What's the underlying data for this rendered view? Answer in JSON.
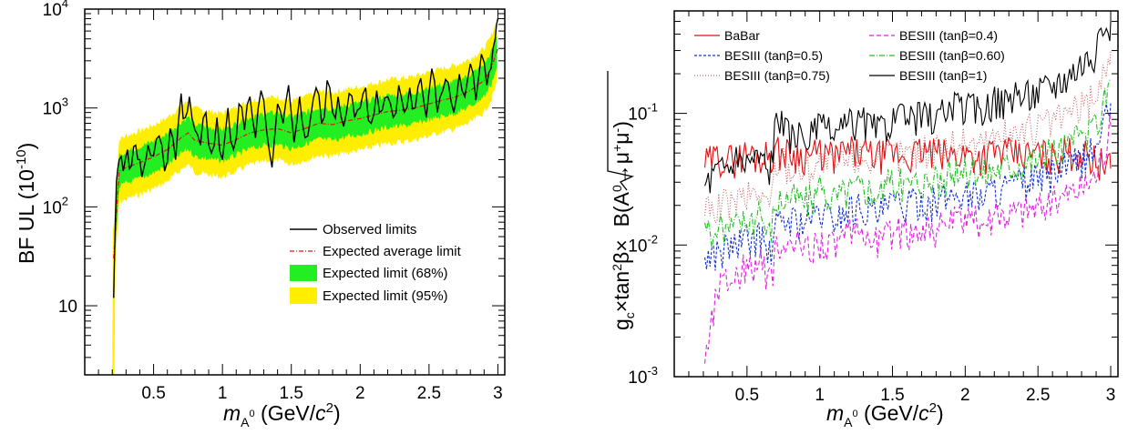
{
  "chart_data": [
    {
      "type": "line",
      "scale": "log-y",
      "xlabel": "m_A0 (GeV/c2)",
      "xlabel_parts": {
        "m": "m",
        "sub": "A",
        "sup": "0",
        "unit_open": " (GeV/",
        "c": "c",
        "pow": "2",
        "close": ")"
      },
      "ylabel": "BF UL (10^-10)",
      "ylabel_parts": {
        "main": "BF UL (10",
        "sup": "-10",
        "close": ")"
      },
      "xlim": [
        0.0,
        3.05
      ],
      "ylim": [
        2,
        10000
      ],
      "x_ticks": [
        "0.5",
        "1",
        "1.5",
        "2",
        "2.5",
        "3"
      ],
      "y_ticks": [
        {
          "value": 10,
          "base": "10",
          "exp": ""
        },
        {
          "value": 100,
          "base": "10",
          "exp": "2"
        },
        {
          "value": 1000,
          "base": "10",
          "exp": "3"
        },
        {
          "value": 10000,
          "base": "10",
          "exp": "4"
        }
      ],
      "legend": [
        "Observed limits",
        "Expected average limit",
        "Expected limit (68%)",
        "Expected limit (95%)"
      ],
      "legend_position": "lower-right",
      "colors": {
        "observed": "#000000",
        "expected": "#d42020",
        "band68": "#22ee22",
        "band95": "#ffee00"
      },
      "expected_curve": {
        "x": [
          0.21,
          0.25,
          0.3,
          0.4,
          0.5,
          0.6,
          0.7,
          0.75,
          0.8,
          0.9,
          1.0,
          1.1,
          1.2,
          1.3,
          1.4,
          1.5,
          1.6,
          1.7,
          1.8,
          1.9,
          2.0,
          2.1,
          2.2,
          2.3,
          2.4,
          2.5,
          2.6,
          2.7,
          2.8,
          2.9,
          2.95,
          3.0
        ],
        "y": [
          30,
          230,
          250,
          280,
          320,
          380,
          500,
          560,
          470,
          440,
          420,
          480,
          560,
          600,
          620,
          560,
          620,
          700,
          680,
          740,
          780,
          850,
          920,
          950,
          1000,
          1100,
          1200,
          1300,
          1500,
          1900,
          2500,
          4000
        ]
      },
      "observed_curve": {
        "x": [
          0.21,
          0.23,
          0.25,
          0.28,
          0.31,
          0.34,
          0.37,
          0.4,
          0.43,
          0.46,
          0.5,
          0.54,
          0.58,
          0.62,
          0.66,
          0.7,
          0.73,
          0.76,
          0.8,
          0.84,
          0.88,
          0.92,
          0.96,
          1.0,
          1.04,
          1.08,
          1.12,
          1.16,
          1.2,
          1.24,
          1.28,
          1.32,
          1.36,
          1.4,
          1.44,
          1.48,
          1.52,
          1.56,
          1.6,
          1.64,
          1.68,
          1.72,
          1.76,
          1.8,
          1.84,
          1.88,
          1.92,
          1.96,
          2.0,
          2.04,
          2.08,
          2.12,
          2.16,
          2.2,
          2.24,
          2.28,
          2.32,
          2.36,
          2.4,
          2.44,
          2.48,
          2.52,
          2.56,
          2.6,
          2.64,
          2.68,
          2.72,
          2.76,
          2.8,
          2.84,
          2.88,
          2.92,
          2.95,
          2.98,
          3.0
        ],
        "y": [
          12,
          180,
          300,
          230,
          380,
          260,
          420,
          300,
          250,
          420,
          330,
          520,
          230,
          620,
          300,
          1400,
          800,
          1300,
          600,
          420,
          900,
          350,
          800,
          300,
          1000,
          380,
          1100,
          600,
          1300,
          500,
          1500,
          600,
          250,
          1100,
          700,
          1700,
          450,
          1300,
          500,
          800,
          1600,
          700,
          1900,
          900,
          1300,
          650,
          1400,
          800,
          1000,
          1600,
          700,
          1500,
          950,
          1300,
          800,
          1700,
          900,
          1600,
          1000,
          2000,
          800,
          2500,
          900,
          1500,
          1800,
          900,
          2200,
          1300,
          2800,
          1200,
          3500,
          1700,
          2500,
          5000,
          8000
        ]
      }
    },
    {
      "type": "line",
      "scale": "log-y",
      "xlabel": "m_A0 (GeV/c2)",
      "xlabel_parts": {
        "m": "m",
        "sub": "A",
        "sup": "0",
        "unit_open": " (GeV/",
        "c": "c",
        "pow": "2",
        "close": ")"
      },
      "ylabel": "gc×tan2β×√B(A0→μ+μ-)",
      "ylabel_parts": {
        "g": "g",
        "c": "c",
        "times": "×tan",
        "pow": "2",
        "beta": "β×",
        "rad": "B(A",
        "zero": "0",
        "arrow": "→μ",
        "plus": "+",
        "mu": "μ",
        "minus": "-",
        "close": ")"
      },
      "xlim": [
        0.0,
        3.05
      ],
      "ylim": [
        0.001,
        0.6
      ],
      "x_ticks": [
        "0.5",
        "1",
        "1.5",
        "2",
        "2.5",
        "3"
      ],
      "y_ticks": [
        {
          "value": 0.001,
          "base": "10",
          "exp": "-3"
        },
        {
          "value": 0.01,
          "base": "10",
          "exp": "-2"
        },
        {
          "value": 0.1,
          "base": "10",
          "exp": "-1"
        }
      ],
      "legend_position": "top",
      "series": [
        {
          "name": "BaBar",
          "color": "#e01010",
          "dash": "",
          "x": [
            0.21,
            0.3,
            0.4,
            0.5,
            0.6,
            0.7,
            0.8,
            0.9,
            1.0,
            1.1,
            1.2,
            1.3,
            1.4,
            1.5,
            1.6,
            1.7,
            1.8,
            1.9,
            2.0,
            2.1,
            2.2,
            2.3,
            2.4,
            2.5,
            2.6,
            2.7,
            2.8,
            2.9,
            3.0
          ],
          "y": [
            0.042,
            0.047,
            0.045,
            0.05,
            0.047,
            0.052,
            0.05,
            0.048,
            0.05,
            0.047,
            0.052,
            0.05,
            0.048,
            0.05,
            0.047,
            0.052,
            0.05,
            0.048,
            0.05,
            0.047,
            0.052,
            0.05,
            0.048,
            0.05,
            0.047,
            0.052,
            0.05,
            0.045,
            0.038
          ]
        },
        {
          "name": "BESIII (tanβ=0.5)",
          "color": "#1030d0",
          "dash": "3,2",
          "x": [
            0.21,
            0.3,
            0.4,
            0.5,
            0.6,
            0.65,
            0.7,
            0.8,
            0.9,
            1.0,
            1.1,
            1.2,
            1.3,
            1.4,
            1.5,
            1.6,
            1.7,
            1.8,
            1.9,
            2.0,
            2.1,
            2.2,
            2.3,
            2.4,
            2.5,
            2.6,
            2.7,
            2.8,
            2.9,
            3.0
          ],
          "y": [
            0.008,
            0.009,
            0.01,
            0.011,
            0.012,
            0.008,
            0.014,
            0.016,
            0.015,
            0.018,
            0.016,
            0.019,
            0.02,
            0.017,
            0.021,
            0.02,
            0.022,
            0.021,
            0.024,
            0.025,
            0.024,
            0.027,
            0.028,
            0.03,
            0.032,
            0.035,
            0.04,
            0.045,
            0.055,
            0.12
          ]
        },
        {
          "name": "BESIII (tanβ=0.75)",
          "color": "#c06060",
          "dash": "1,2",
          "x": [
            0.21,
            0.3,
            0.4,
            0.5,
            0.6,
            0.65,
            0.7,
            0.8,
            0.9,
            1.0,
            1.1,
            1.2,
            1.3,
            1.4,
            1.5,
            1.6,
            1.7,
            1.8,
            1.9,
            2.0,
            2.1,
            2.2,
            2.3,
            2.4,
            2.5,
            2.6,
            2.7,
            2.8,
            2.9,
            3.0
          ],
          "y": [
            0.018,
            0.02,
            0.022,
            0.024,
            0.026,
            0.018,
            0.045,
            0.04,
            0.038,
            0.045,
            0.04,
            0.046,
            0.05,
            0.042,
            0.052,
            0.05,
            0.055,
            0.052,
            0.06,
            0.062,
            0.06,
            0.066,
            0.07,
            0.075,
            0.08,
            0.088,
            0.1,
            0.115,
            0.14,
            0.3
          ]
        },
        {
          "name": "BESIII (tanβ=0.4)",
          "color": "#e020e0",
          "dash": "5,3",
          "x": [
            0.21,
            0.3,
            0.4,
            0.5,
            0.6,
            0.65,
            0.7,
            0.8,
            0.9,
            1.0,
            1.1,
            1.2,
            1.3,
            1.4,
            1.5,
            1.6,
            1.7,
            1.8,
            1.9,
            2.0,
            2.1,
            2.2,
            2.3,
            2.4,
            2.5,
            2.6,
            2.7,
            2.8,
            2.9,
            3.0
          ],
          "y": [
            0.0013,
            0.005,
            0.006,
            0.007,
            0.0075,
            0.005,
            0.009,
            0.01,
            0.0095,
            0.011,
            0.01,
            0.012,
            0.0125,
            0.011,
            0.013,
            0.0125,
            0.014,
            0.0135,
            0.015,
            0.016,
            0.015,
            0.017,
            0.018,
            0.019,
            0.02,
            0.022,
            0.025,
            0.028,
            0.035,
            0.08
          ]
        },
        {
          "name": "BESIII (tanβ=0.60)",
          "color": "#20c020",
          "dash": "6,2,1,2",
          "x": [
            0.21,
            0.3,
            0.4,
            0.5,
            0.6,
            0.65,
            0.7,
            0.8,
            0.9,
            1.0,
            1.1,
            1.2,
            1.3,
            1.4,
            1.5,
            1.6,
            1.7,
            1.8,
            1.9,
            2.0,
            2.1,
            2.2,
            2.3,
            2.4,
            2.5,
            2.6,
            2.7,
            2.8,
            2.9,
            3.0
          ],
          "y": [
            0.012,
            0.013,
            0.014,
            0.016,
            0.017,
            0.012,
            0.022,
            0.024,
            0.022,
            0.026,
            0.023,
            0.027,
            0.029,
            0.025,
            0.031,
            0.029,
            0.032,
            0.03,
            0.035,
            0.037,
            0.035,
            0.039,
            0.041,
            0.044,
            0.047,
            0.052,
            0.058,
            0.068,
            0.08,
            0.18
          ]
        },
        {
          "name": "BESIII (tanβ=1)",
          "color": "#000000",
          "dash": "",
          "x": [
            0.21,
            0.3,
            0.4,
            0.5,
            0.6,
            0.65,
            0.7,
            0.8,
            0.9,
            1.0,
            1.1,
            1.2,
            1.3,
            1.4,
            1.5,
            1.6,
            1.7,
            1.8,
            1.9,
            2.0,
            2.1,
            2.2,
            2.3,
            2.4,
            2.5,
            2.6,
            2.7,
            2.8,
            2.9,
            3.0
          ],
          "y": [
            0.03,
            0.038,
            0.042,
            0.045,
            0.048,
            0.035,
            0.09,
            0.07,
            0.065,
            0.08,
            0.07,
            0.085,
            0.09,
            0.075,
            0.095,
            0.09,
            0.1,
            0.095,
            0.11,
            0.115,
            0.11,
            0.125,
            0.13,
            0.14,
            0.15,
            0.17,
            0.2,
            0.25,
            0.3,
            0.5
          ]
        }
      ]
    }
  ]
}
